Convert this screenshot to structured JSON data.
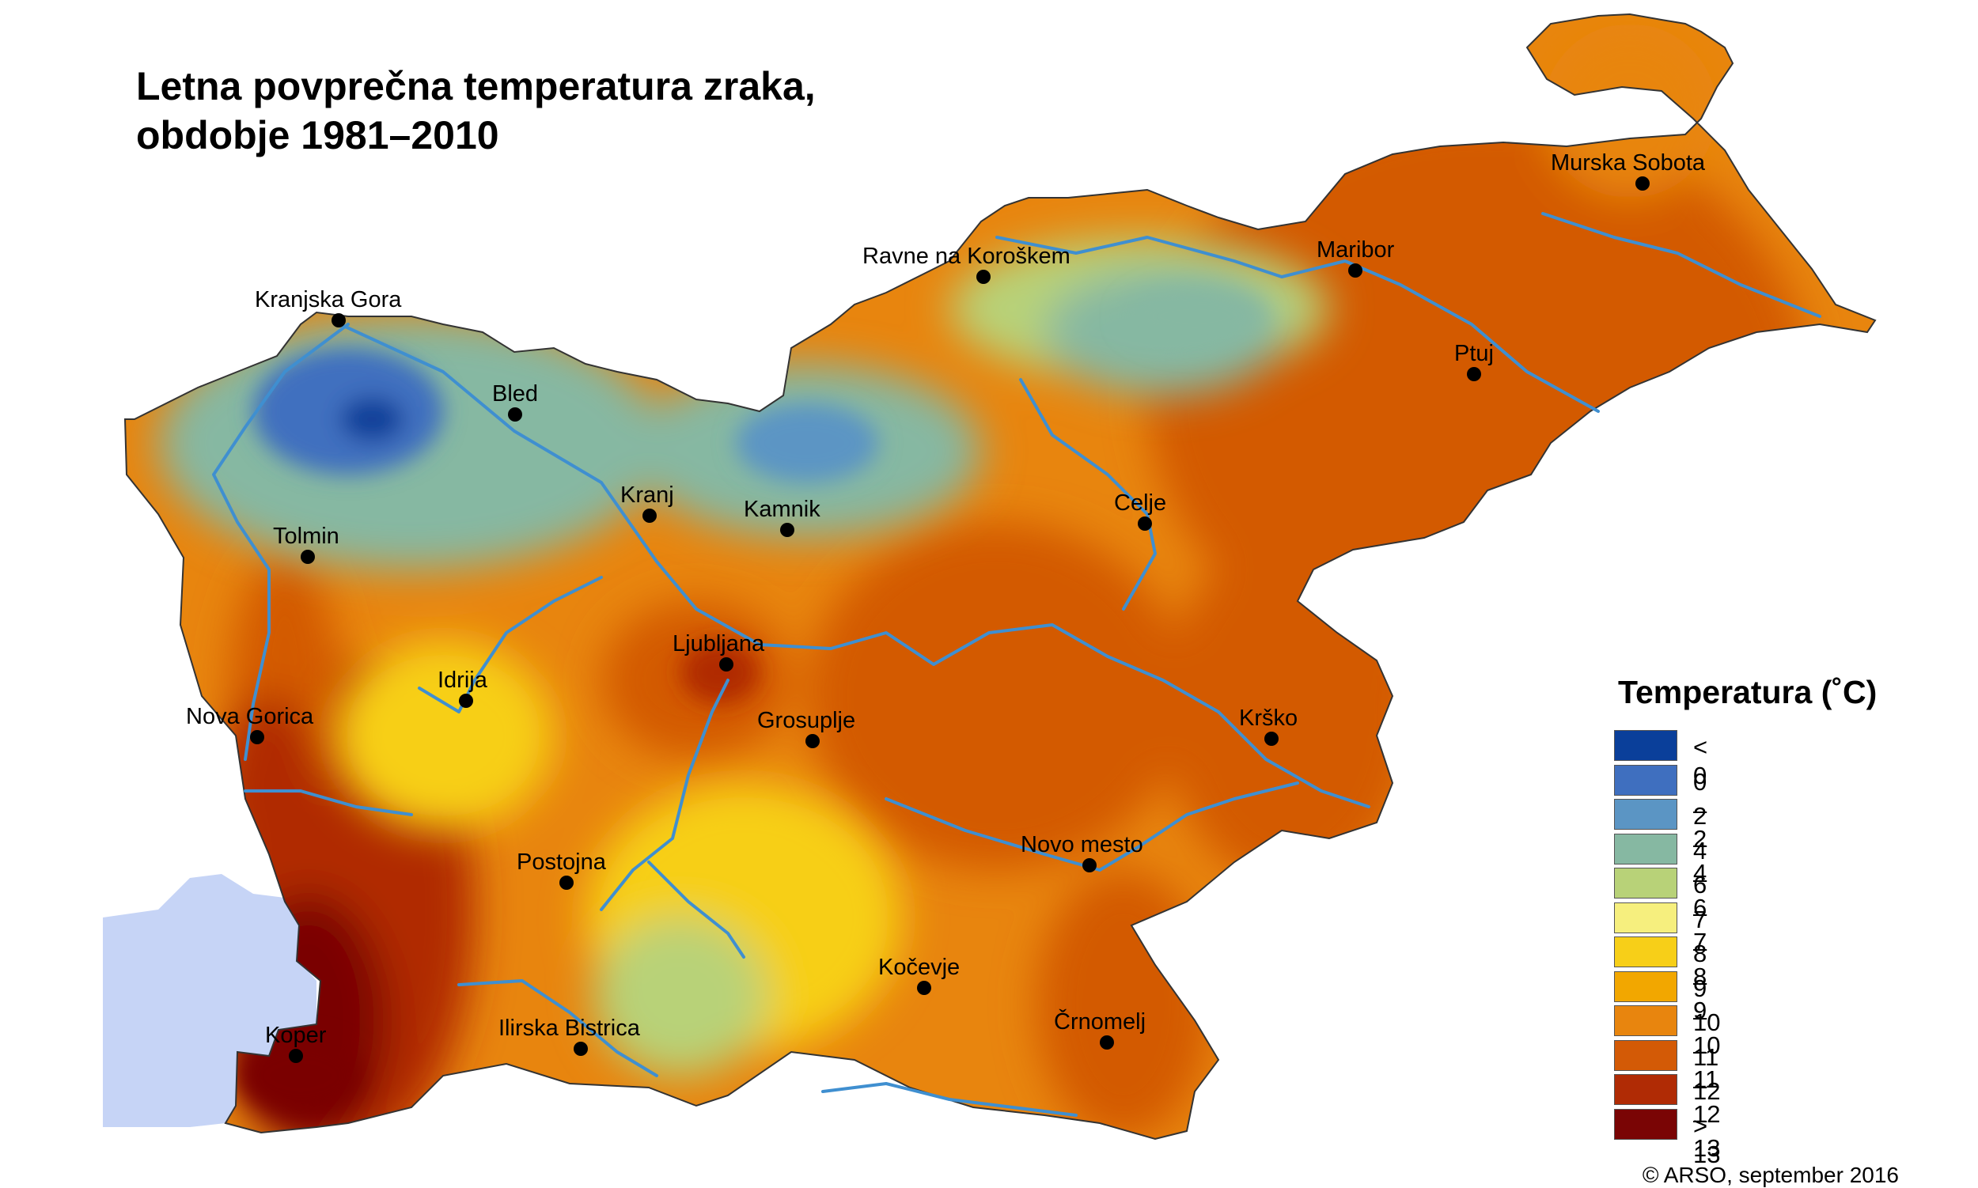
{
  "title": {
    "line1": "Letna povprečna temperatura zraka,",
    "line2": "obdobje 1981–2010"
  },
  "legend": {
    "title": "Temperatura (˚C)",
    "classes": [
      {
        "label": "< 0",
        "color": "#0a3f9a"
      },
      {
        "label": "0 – 2",
        "color": "#3f6fbf"
      },
      {
        "label": "2 – 4",
        "color": "#5b95c4"
      },
      {
        "label": "4 – 6",
        "color": "#86b8a2"
      },
      {
        "label": "6 – 7",
        "color": "#b8d278"
      },
      {
        "label": "7 – 8",
        "color": "#f6ef7e"
      },
      {
        "label": "8 – 9",
        "color": "#f7cf18"
      },
      {
        "label": "9 – 10",
        "color": "#f2a700"
      },
      {
        "label": "10 – 11",
        "color": "#e8850e"
      },
      {
        "label": "11 – 12",
        "color": "#d35a06"
      },
      {
        "label": "12 – 13",
        "color": "#b02b05"
      },
      {
        "label": "> 13",
        "color": "#7a0505"
      }
    ]
  },
  "cities": [
    {
      "name": "Murska Sobota"
    },
    {
      "name": "Maribor"
    },
    {
      "name": "Ravne na Koroškem"
    },
    {
      "name": "Ptuj"
    },
    {
      "name": "Kranjska Gora"
    },
    {
      "name": "Bled"
    },
    {
      "name": "Kranj"
    },
    {
      "name": "Kamnik"
    },
    {
      "name": "Celje"
    },
    {
      "name": "Tolmin"
    },
    {
      "name": "Ljubljana"
    },
    {
      "name": "Idrija"
    },
    {
      "name": "Nova Gorica"
    },
    {
      "name": "Grosuplje"
    },
    {
      "name": "Krško"
    },
    {
      "name": "Novo mesto"
    },
    {
      "name": "Postojna"
    },
    {
      "name": "Kočevje"
    },
    {
      "name": "Črnomelj"
    },
    {
      "name": "Ilirska Bistrica"
    },
    {
      "name": "Koper"
    }
  ],
  "colors": {
    "sea": "#c6d4f6",
    "river": "#3f8fd0",
    "border": "#333333"
  },
  "copyright": "© ARSO, september 2016"
}
